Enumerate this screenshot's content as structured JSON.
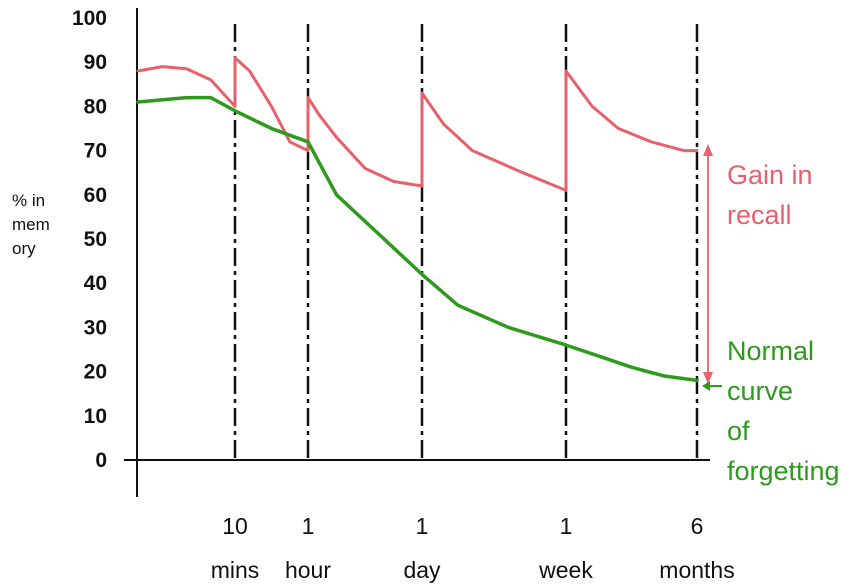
{
  "chart_data": {
    "type": "line",
    "ylabel": [
      "% in",
      "mem",
      "ory"
    ],
    "ylim": [
      0,
      100
    ],
    "yticks": [
      0,
      10,
      20,
      30,
      40,
      50,
      60,
      70,
      80,
      90,
      100
    ],
    "x_markers": [
      {
        "line1": "10",
        "line2": "mins",
        "x": 1
      },
      {
        "line1": "1",
        "line2": "hour",
        "x": 2
      },
      {
        "line1": "1",
        "line2": "day",
        "x": 3
      },
      {
        "line1": "1",
        "line2": "week",
        "x": 4
      },
      {
        "line1": "6",
        "line2": "months",
        "x": 5
      }
    ],
    "series": [
      {
        "name": "Gain in recall",
        "color": "#e8606a",
        "points": [
          [
            0,
            88
          ],
          [
            0.25,
            89
          ],
          [
            0.5,
            88.5
          ],
          [
            0.75,
            86
          ],
          [
            1,
            80
          ],
          [
            1,
            91
          ],
          [
            1.2,
            88
          ],
          [
            1.5,
            80
          ],
          [
            1.75,
            72
          ],
          [
            2,
            70
          ],
          [
            2,
            82
          ],
          [
            2.2,
            78
          ],
          [
            2.5,
            73
          ],
          [
            3.0,
            66
          ],
          [
            3.5,
            63
          ],
          [
            4,
            62
          ],
          [
            4,
            83
          ],
          [
            4.3,
            76
          ],
          [
            4.7,
            70
          ],
          [
            5.4,
            65
          ],
          [
            6,
            61
          ],
          [
            6,
            88
          ],
          [
            6.4,
            80
          ],
          [
            6.8,
            75
          ],
          [
            7.3,
            72
          ],
          [
            7.8,
            70
          ],
          [
            8,
            70
          ]
        ]
      },
      {
        "name": "Normal curve of forgetting",
        "color": "#2e9a1c",
        "points": [
          [
            0,
            81
          ],
          [
            0.5,
            82
          ],
          [
            0.75,
            82
          ],
          [
            1,
            79
          ],
          [
            1.5,
            75
          ],
          [
            2,
            72
          ],
          [
            2.5,
            60
          ],
          [
            3.5,
            48
          ],
          [
            4,
            42
          ],
          [
            4.5,
            35
          ],
          [
            5.2,
            30
          ],
          [
            6.0,
            26
          ],
          [
            6.2,
            25
          ],
          [
            6.4,
            24
          ],
          [
            6.6,
            23
          ],
          [
            7.0,
            21
          ],
          [
            7.5,
            19
          ],
          [
            8,
            18
          ]
        ]
      }
    ],
    "annotations": [
      {
        "lines": [
          "Gain in",
          "recall"
        ],
        "color": "#e8606a"
      },
      {
        "lines": [
          "Normal",
          "curve",
          "of",
          "forgetting"
        ],
        "color": "#2e9a1c"
      }
    ],
    "grid": false
  }
}
